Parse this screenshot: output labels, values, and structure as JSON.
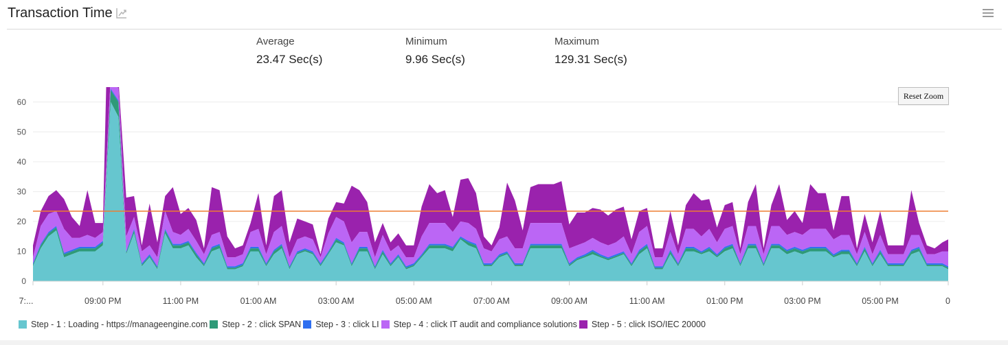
{
  "header": {
    "title": "Transaction Time"
  },
  "stats": [
    {
      "label": "Average",
      "value": "23.47 Sec(s)"
    },
    {
      "label": "Minimum",
      "value": "9.96 Sec(s)"
    },
    {
      "label": "Maximum",
      "value": "129.31 Sec(s)"
    }
  ],
  "reset_zoom_label": "Reset Zoom",
  "icons": {
    "title": "trend-chart-icon",
    "menu": "hamburger-menu-icon"
  },
  "chart_data": {
    "type": "area",
    "stacked": true,
    "grid": true,
    "legend_position": "bottom-left",
    "ylim": [
      0,
      65
    ],
    "yticks": [
      0,
      10,
      20,
      30,
      40,
      50,
      60
    ],
    "xticks": [
      "7:...",
      "09:00 PM",
      "11:00 PM",
      "01:00 AM",
      "03:00 AM",
      "05:00 AM",
      "07:00 AM",
      "09:00 AM",
      "11:00 AM",
      "01:00 PM",
      "03:00 PM",
      "05:00 PM",
      "0"
    ],
    "xtick_minutes": [
      0,
      108,
      228,
      348,
      468,
      588,
      708,
      828,
      948,
      1068,
      1188,
      1308,
      1413
    ],
    "average_line": 23.47,
    "series_colors": [
      "#66c6cf",
      "#2e9a78",
      "#2f6ff0",
      "#bb66f5",
      "#9a22ad"
    ],
    "average_color": "#ee7d32",
    "series": [
      {
        "name": "Step - 1 : Loading - https://manageengine.com",
        "color": "#66c6cf"
      },
      {
        "name": "Step - 2 : click SPAN",
        "color": "#2e9a78"
      },
      {
        "name": "Step - 3 : click LI",
        "color": "#2f6ff0"
      },
      {
        "name": "Step - 4 : click IT audit and compliance solutions",
        "color": "#bb66f5"
      },
      {
        "name": "Step - 5 : click ISO/IEC 20000",
        "color": "#9a22ad"
      }
    ],
    "points": [
      {
        "t": 0,
        "v": [
          5,
          0.5,
          0.5,
          2,
          4
        ]
      },
      {
        "t": 12,
        "v": [
          11,
          1,
          0.5,
          6,
          5
        ]
      },
      {
        "t": 24,
        "v": [
          15,
          1,
          0.5,
          6,
          6
        ]
      },
      {
        "t": 36,
        "v": [
          17,
          1,
          0.5,
          5,
          7
        ]
      },
      {
        "t": 48,
        "v": [
          8,
          1,
          0.5,
          8,
          10
        ]
      },
      {
        "t": 60,
        "v": [
          9,
          1,
          0.5,
          4,
          7
        ]
      },
      {
        "t": 72,
        "v": [
          10,
          1,
          0.5,
          3,
          4
        ]
      },
      {
        "t": 84,
        "v": [
          10,
          1,
          0.5,
          4,
          15
        ]
      },
      {
        "t": 96,
        "v": [
          10,
          1,
          0.5,
          3,
          5
        ]
      },
      {
        "t": 108,
        "v": [
          12,
          1,
          0.5,
          3,
          3
        ]
      },
      {
        "t": 120,
        "v": [
          60,
          4,
          0.5,
          4,
          60
        ]
      },
      {
        "t": 132,
        "v": [
          55,
          5,
          0.5,
          4,
          3
        ]
      },
      {
        "t": 144,
        "v": [
          9,
          0.5,
          0.5,
          5,
          13
        ]
      },
      {
        "t": 156,
        "v": [
          16,
          1,
          0.5,
          4,
          7
        ]
      },
      {
        "t": 168,
        "v": [
          5,
          0.5,
          0.5,
          4,
          2
        ]
      },
      {
        "t": 180,
        "v": [
          8,
          0.5,
          0.5,
          3,
          14
        ]
      },
      {
        "t": 192,
        "v": [
          4,
          0.5,
          0.5,
          3,
          5
        ]
      },
      {
        "t": 204,
        "v": [
          16,
          1,
          0.5,
          6,
          5
        ]
      },
      {
        "t": 216,
        "v": [
          11,
          1,
          0.5,
          4,
          15
        ]
      },
      {
        "t": 228,
        "v": [
          11,
          1,
          0.5,
          3,
          7
        ]
      },
      {
        "t": 240,
        "v": [
          12,
          1,
          0.5,
          4,
          7
        ]
      },
      {
        "t": 252,
        "v": [
          8,
          1,
          0.5,
          4,
          7
        ]
      },
      {
        "t": 264,
        "v": [
          5,
          0.5,
          0.5,
          3,
          2
        ]
      },
      {
        "t": 276,
        "v": [
          10,
          1,
          0.5,
          4,
          16
        ]
      },
      {
        "t": 288,
        "v": [
          11,
          1,
          0.5,
          4,
          14
        ]
      },
      {
        "t": 300,
        "v": [
          4,
          0.5,
          0.5,
          3,
          7
        ]
      },
      {
        "t": 312,
        "v": [
          4,
          0.5,
          0.5,
          3,
          3
        ]
      },
      {
        "t": 324,
        "v": [
          5,
          0.5,
          0.5,
          3,
          3
        ]
      },
      {
        "t": 336,
        "v": [
          10,
          1,
          0.5,
          5,
          3
        ]
      },
      {
        "t": 348,
        "v": [
          10,
          1,
          0.5,
          6,
          12
        ]
      },
      {
        "t": 360,
        "v": [
          5,
          0.5,
          0.5,
          3,
          3
        ]
      },
      {
        "t": 372,
        "v": [
          9,
          1,
          0.5,
          6,
          12
        ]
      },
      {
        "t": 384,
        "v": [
          11,
          1,
          0.5,
          6,
          12
        ]
      },
      {
        "t": 396,
        "v": [
          4,
          0.5,
          0.5,
          3,
          5
        ]
      },
      {
        "t": 408,
        "v": [
          9,
          0.5,
          0.5,
          4,
          7
        ]
      },
      {
        "t": 420,
        "v": [
          10,
          0.5,
          0.5,
          4,
          5
        ]
      },
      {
        "t": 432,
        "v": [
          9,
          0.5,
          0.5,
          4,
          5
        ]
      },
      {
        "t": 444,
        "v": [
          5,
          0.5,
          0.5,
          2,
          1
        ]
      },
      {
        "t": 456,
        "v": [
          9,
          0.5,
          0.5,
          6,
          5
        ]
      },
      {
        "t": 468,
        "v": [
          13,
          1,
          0.5,
          7,
          5
        ]
      },
      {
        "t": 480,
        "v": [
          12,
          0.5,
          0.5,
          7,
          6
        ]
      },
      {
        "t": 492,
        "v": [
          5,
          0.5,
          0.5,
          7,
          19
        ]
      },
      {
        "t": 504,
        "v": [
          10,
          1,
          0.5,
          5,
          14
        ]
      },
      {
        "t": 516,
        "v": [
          10,
          1,
          0.5,
          5,
          10
        ]
      },
      {
        "t": 528,
        "v": [
          4,
          0.5,
          0.5,
          3,
          5
        ]
      },
      {
        "t": 540,
        "v": [
          9,
          1,
          0.5,
          5,
          4
        ]
      },
      {
        "t": 552,
        "v": [
          5,
          0.5,
          0.5,
          4,
          3
        ]
      },
      {
        "t": 564,
        "v": [
          8,
          0.5,
          0.5,
          3,
          4
        ]
      },
      {
        "t": 576,
        "v": [
          4,
          0.5,
          0.5,
          3,
          4
        ]
      },
      {
        "t": 588,
        "v": [
          5,
          0.5,
          0.5,
          2,
          4
        ]
      },
      {
        "t": 600,
        "v": [
          8,
          0.5,
          0.5,
          6,
          10
        ]
      },
      {
        "t": 612,
        "v": [
          11,
          1,
          0.5,
          7,
          13
        ]
      },
      {
        "t": 624,
        "v": [
          11,
          1,
          0.5,
          7,
          10
        ]
      },
      {
        "t": 636,
        "v": [
          11,
          1,
          0.5,
          7,
          11
        ]
      },
      {
        "t": 648,
        "v": [
          10,
          1,
          0.5,
          5,
          5
        ]
      },
      {
        "t": 660,
        "v": [
          14,
          0.5,
          0.5,
          5,
          14
        ]
      },
      {
        "t": 672,
        "v": [
          12,
          1,
          0.5,
          6,
          15
        ]
      },
      {
        "t": 684,
        "v": [
          11,
          1,
          0.5,
          5,
          12
        ]
      },
      {
        "t": 696,
        "v": [
          5,
          0.5,
          0.5,
          5,
          4
        ]
      },
      {
        "t": 708,
        "v": [
          5,
          0.5,
          0.5,
          4,
          2
        ]
      },
      {
        "t": 720,
        "v": [
          8,
          0.5,
          0.5,
          5,
          4
        ]
      },
      {
        "t": 732,
        "v": [
          9,
          0.5,
          0.5,
          5,
          18
        ]
      },
      {
        "t": 744,
        "v": [
          5,
          0.5,
          0.5,
          5,
          16
        ]
      },
      {
        "t": 756,
        "v": [
          5,
          0.5,
          0.5,
          5,
          6
        ]
      },
      {
        "t": 768,
        "v": [
          11,
          1,
          0.5,
          7,
          12
        ]
      },
      {
        "t": 780,
        "v": [
          11,
          1,
          0.5,
          7,
          13
        ]
      },
      {
        "t": 792,
        "v": [
          11,
          1,
          0.5,
          7,
          13
        ]
      },
      {
        "t": 804,
        "v": [
          11,
          1,
          0.5,
          7,
          13
        ]
      },
      {
        "t": 816,
        "v": [
          11,
          1,
          0.5,
          7,
          14
        ]
      },
      {
        "t": 828,
        "v": [
          5,
          0.5,
          0.5,
          5,
          8
        ]
      },
      {
        "t": 840,
        "v": [
          7,
          0.5,
          0.5,
          4,
          11
        ]
      },
      {
        "t": 852,
        "v": [
          8,
          0.5,
          0.5,
          4,
          10
        ]
      },
      {
        "t": 864,
        "v": [
          9,
          1,
          0.5,
          4,
          10
        ]
      },
      {
        "t": 876,
        "v": [
          8,
          0.5,
          0.5,
          4,
          11
        ]
      },
      {
        "t": 888,
        "v": [
          7,
          0.5,
          0.5,
          4,
          10
        ]
      },
      {
        "t": 900,
        "v": [
          8,
          0.5,
          0.5,
          4,
          11
        ]
      },
      {
        "t": 912,
        "v": [
          9,
          0.5,
          0.5,
          5,
          10
        ]
      },
      {
        "t": 924,
        "v": [
          5,
          0.5,
          0.5,
          3,
          5
        ]
      },
      {
        "t": 936,
        "v": [
          9,
          1,
          0.5,
          6,
          7
        ]
      },
      {
        "t": 948,
        "v": [
          11,
          1,
          0.5,
          6,
          6
        ]
      },
      {
        "t": 960,
        "v": [
          4,
          0.5,
          0.5,
          3,
          3
        ]
      },
      {
        "t": 972,
        "v": [
          4,
          0.5,
          0.5,
          3,
          3
        ]
      },
      {
        "t": 984,
        "v": [
          9,
          1,
          0.5,
          6,
          7
        ]
      },
      {
        "t": 996,
        "v": [
          5,
          0.5,
          0.5,
          3,
          3
        ]
      },
      {
        "t": 1008,
        "v": [
          10,
          1,
          0.5,
          6,
          8
        ]
      },
      {
        "t": 1020,
        "v": [
          10,
          1,
          0.5,
          6,
          12
        ]
      },
      {
        "t": 1032,
        "v": [
          9,
          0.5,
          0.5,
          5,
          12
        ]
      },
      {
        "t": 1044,
        "v": [
          10,
          1,
          0.5,
          6,
          10
        ]
      },
      {
        "t": 1056,
        "v": [
          8,
          0.5,
          0.5,
          4,
          5
        ]
      },
      {
        "t": 1068,
        "v": [
          10,
          1,
          0.5,
          6,
          8
        ]
      },
      {
        "t": 1080,
        "v": [
          11,
          1,
          0.5,
          6,
          8
        ]
      },
      {
        "t": 1092,
        "v": [
          5,
          0.5,
          0.5,
          3,
          2
        ]
      },
      {
        "t": 1104,
        "v": [
          11,
          1,
          0.5,
          6,
          8
        ]
      },
      {
        "t": 1116,
        "v": [
          11,
          1,
          0.5,
          6,
          14
        ]
      },
      {
        "t": 1128,
        "v": [
          5,
          0.5,
          0.5,
          3,
          2
        ]
      },
      {
        "t": 1140,
        "v": [
          11,
          1,
          0.5,
          6,
          7
        ]
      },
      {
        "t": 1152,
        "v": [
          11,
          1,
          0.5,
          6,
          14
        ]
      },
      {
        "t": 1164,
        "v": [
          9,
          1,
          0.5,
          5,
          5
        ]
      },
      {
        "t": 1176,
        "v": [
          10,
          1,
          0.5,
          5,
          7
        ]
      },
      {
        "t": 1188,
        "v": [
          9,
          1,
          0.5,
          5,
          4
        ]
      },
      {
        "t": 1200,
        "v": [
          10,
          1,
          0.5,
          6,
          15
        ]
      },
      {
        "t": 1212,
        "v": [
          10,
          1,
          0.5,
          6,
          12
        ]
      },
      {
        "t": 1224,
        "v": [
          10,
          1,
          0.5,
          6,
          12
        ]
      },
      {
        "t": 1236,
        "v": [
          8,
          0.5,
          0.5,
          5,
          3
        ]
      },
      {
        "t": 1248,
        "v": [
          9,
          1,
          0.5,
          5,
          13
        ]
      },
      {
        "t": 1260,
        "v": [
          9,
          1,
          0.5,
          5,
          13
        ]
      },
      {
        "t": 1272,
        "v": [
          5,
          0.5,
          0.5,
          3,
          2
        ]
      },
      {
        "t": 1284,
        "v": [
          10,
          1,
          0.5,
          5,
          6
        ]
      },
      {
        "t": 1296,
        "v": [
          5,
          0.5,
          0.5,
          3,
          4
        ]
      },
      {
        "t": 1308,
        "v": [
          9,
          1,
          0.5,
          5,
          8
        ]
      },
      {
        "t": 1320,
        "v": [
          5,
          0.5,
          0.5,
          3,
          3
        ]
      },
      {
        "t": 1332,
        "v": [
          5,
          0.5,
          0.5,
          3,
          3
        ]
      },
      {
        "t": 1344,
        "v": [
          5,
          0.5,
          0.5,
          3,
          3
        ]
      },
      {
        "t": 1356,
        "v": [
          9,
          1,
          0.5,
          5,
          15
        ]
      },
      {
        "t": 1368,
        "v": [
          10,
          1,
          0.5,
          4,
          4
        ]
      },
      {
        "t": 1380,
        "v": [
          5,
          0.5,
          0.5,
          3,
          3
        ]
      },
      {
        "t": 1392,
        "v": [
          5,
          0.5,
          0.5,
          3,
          2
        ]
      },
      {
        "t": 1404,
        "v": [
          5,
          0.5,
          0.5,
          4,
          3
        ]
      },
      {
        "t": 1413,
        "v": [
          4,
          0.5,
          0.5,
          5,
          4
        ]
      }
    ]
  }
}
